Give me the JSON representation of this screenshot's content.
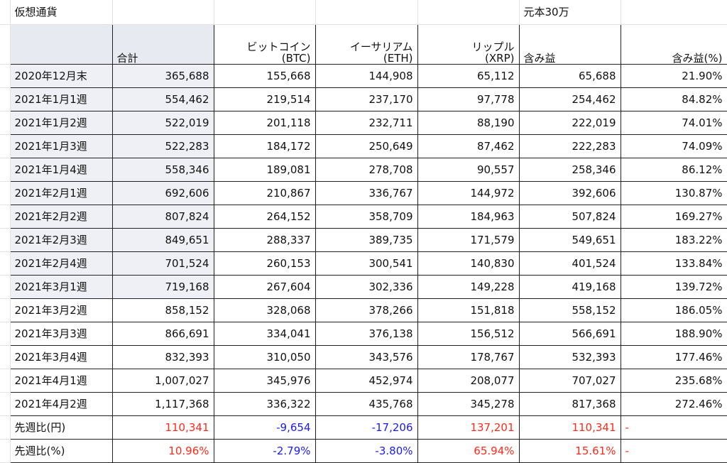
{
  "title": "仮想通貨",
  "principal_note": "元本30万",
  "headers": {
    "total": "合計",
    "btc_line1": "ビットコイン",
    "btc_line2": "(BTC)",
    "eth_line1": "イーサリアム",
    "eth_line2": "(ETH)",
    "xrp_line1": "リップル",
    "xrp_line2": "(XRP)",
    "profit": "含み益",
    "profit_pct": "含み益(%)"
  },
  "rows": [
    {
      "date": "2020年12月末",
      "total": "365,688",
      "btc": "155,668",
      "eth": "144,908",
      "xrp": "65,112",
      "profit": "65,688",
      "pct": "21.90%"
    },
    {
      "date": "2021年1月1週",
      "total": "554,462",
      "btc": "219,514",
      "eth": "237,170",
      "xrp": "97,778",
      "profit": "254,462",
      "pct": "84.82%"
    },
    {
      "date": "2021年1月2週",
      "total": "522,019",
      "btc": "201,118",
      "eth": "232,711",
      "xrp": "88,190",
      "profit": "222,019",
      "pct": "74.01%"
    },
    {
      "date": "2021年1月3週",
      "total": "522,283",
      "btc": "184,172",
      "eth": "250,649",
      "xrp": "87,462",
      "profit": "222,283",
      "pct": "74.09%"
    },
    {
      "date": "2021年1月4週",
      "total": "558,346",
      "btc": "189,081",
      "eth": "278,708",
      "xrp": "90,557",
      "profit": "258,346",
      "pct": "86.12%"
    },
    {
      "date": "2021年2月1週",
      "total": "692,606",
      "btc": "210,867",
      "eth": "336,767",
      "xrp": "144,972",
      "profit": "392,606",
      "pct": "130.87%"
    },
    {
      "date": "2021年2月2週",
      "total": "807,824",
      "btc": "264,152",
      "eth": "358,709",
      "xrp": "184,963",
      "profit": "507,824",
      "pct": "169.27%"
    },
    {
      "date": "2021年2月3週",
      "total": "849,651",
      "btc": "288,337",
      "eth": "389,735",
      "xrp": "171,579",
      "profit": "549,651",
      "pct": "183.22%"
    },
    {
      "date": "2021年2月4週",
      "total": "701,524",
      "btc": "260,153",
      "eth": "300,541",
      "xrp": "140,830",
      "profit": "401,524",
      "pct": "133.84%"
    },
    {
      "date": "2021年3月1週",
      "total": "719,168",
      "btc": "267,604",
      "eth": "302,336",
      "xrp": "149,228",
      "profit": "419,168",
      "pct": "139.72%"
    },
    {
      "date": "2021年3月2週",
      "total": "858,152",
      "btc": "328,068",
      "eth": "378,266",
      "xrp": "151,818",
      "profit": "558,152",
      "pct": "186.05%"
    },
    {
      "date": "2021年3月3週",
      "total": "866,691",
      "btc": "334,041",
      "eth": "376,138",
      "xrp": "156,512",
      "profit": "566,691",
      "pct": "188.90%"
    },
    {
      "date": "2021年3月4週",
      "total": "832,393",
      "btc": "310,050",
      "eth": "343,576",
      "xrp": "178,767",
      "profit": "532,393",
      "pct": "177.46%"
    },
    {
      "date": "2021年4月1週",
      "total": "1,007,027",
      "btc": "345,976",
      "eth": "452,974",
      "xrp": "208,077",
      "profit": "707,027",
      "pct": "235.68%"
    },
    {
      "date": "2021年4月2週",
      "total": "1,117,368",
      "btc": "336,322",
      "eth": "435,768",
      "xrp": "345,278",
      "profit": "817,368",
      "pct": "272.46%"
    }
  ],
  "change_yen": {
    "label": "先週比(円)",
    "total": "110,341",
    "btc": "-9,654",
    "eth": "-17,206",
    "xrp": "137,201",
    "profit": "110,341",
    "pct": "-"
  },
  "change_pct": {
    "label": "先週比(%)",
    "total": "10.96%",
    "btc": "-2.79%",
    "eth": "-3.80%",
    "xrp": "65.94%",
    "profit": "15.61%",
    "pct": "-"
  },
  "colors": {
    "positive": "#ff2a1a",
    "negative": "#1a1aff",
    "header_fill": "#e8eaf1",
    "shaded_total": "#eef0f5"
  }
}
